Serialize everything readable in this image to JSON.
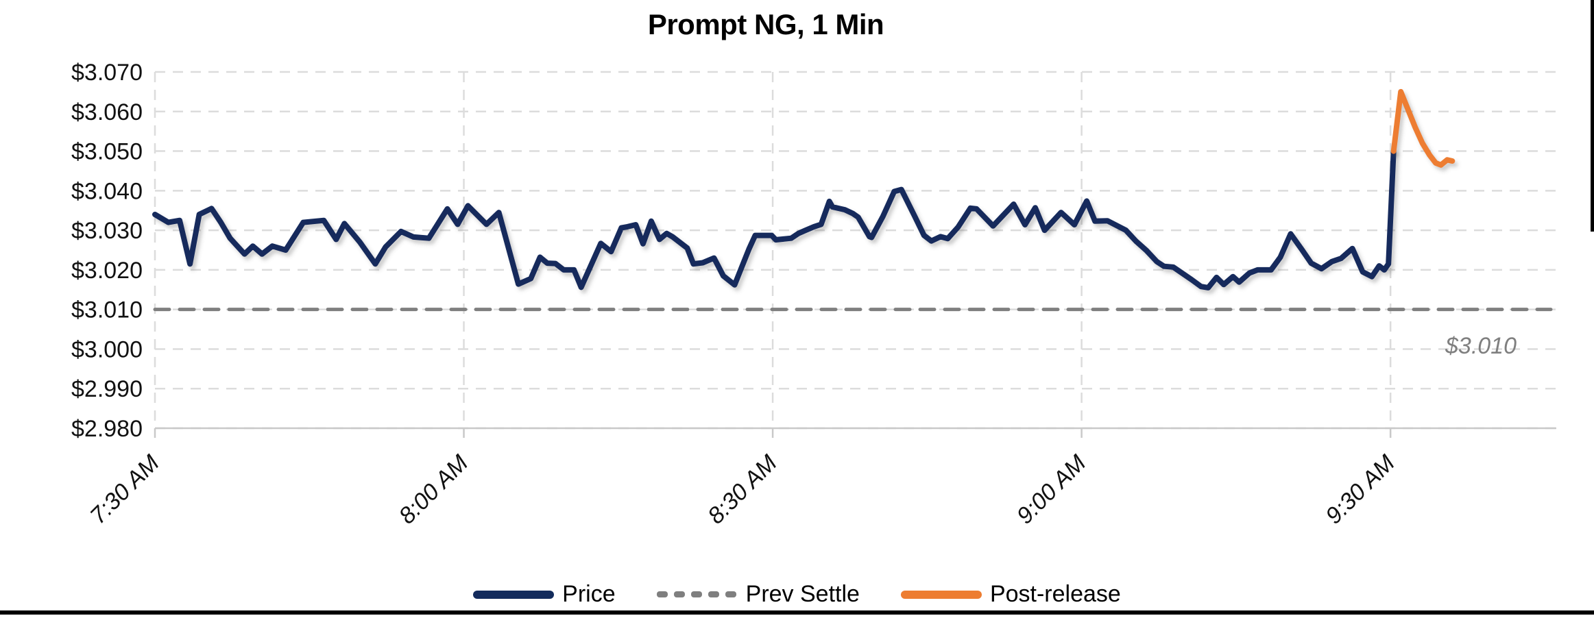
{
  "title": "Prompt NG, 1 Min",
  "annotation": {
    "text": "$3.010",
    "color": "#7f7f7f"
  },
  "legend": [
    {
      "label": "Price",
      "color": "#132B5C",
      "style": "solid"
    },
    {
      "label": "Prev Settle",
      "color": "#7F7F7F",
      "style": "dashed"
    },
    {
      "label": "Post-release",
      "color": "#ED7D31",
      "style": "solid"
    }
  ],
  "chart_data": {
    "type": "line",
    "title": "Prompt NG, 1 Min",
    "xlabel": "",
    "ylabel": "",
    "x_unit": "minutes after 7:30 AM",
    "x_tick_labels": [
      "7:30 AM",
      "8:00 AM",
      "8:30 AM",
      "9:00 AM",
      "9:30 AM"
    ],
    "x_tick_minutes": [
      0,
      30,
      60,
      90,
      120
    ],
    "xlim_minutes": [
      0,
      136
    ],
    "y_tick_labels": [
      "$3.070",
      "$3.060",
      "$3.050",
      "$3.040",
      "$3.030",
      "$3.020",
      "$3.010",
      "$3.000",
      "$2.990",
      "$2.980"
    ],
    "ylim": [
      2.98,
      3.07
    ],
    "grid": "dashed",
    "legend_position": "bottom",
    "prev_settle_value": 3.01,
    "series": [
      {
        "name": "Price",
        "color": "#132B5C",
        "points": [
          [
            0,
            3.034
          ],
          [
            1.3,
            3.032
          ],
          [
            2.4,
            3.0325
          ],
          [
            3.4,
            3.0215
          ],
          [
            4.3,
            3.034
          ],
          [
            5.5,
            3.0355
          ],
          [
            6.4,
            3.032
          ],
          [
            7.3,
            3.028
          ],
          [
            8,
            3.026
          ],
          [
            8.7,
            3.024
          ],
          [
            9.5,
            3.026
          ],
          [
            10.4,
            3.024
          ],
          [
            11.4,
            3.026
          ],
          [
            12.7,
            3.025
          ],
          [
            14.4,
            3.032
          ],
          [
            16.4,
            3.0325
          ],
          [
            17.6,
            3.0277
          ],
          [
            18.4,
            3.0317
          ],
          [
            19.9,
            3.027
          ],
          [
            21.4,
            3.0215
          ],
          [
            22.4,
            3.0258
          ],
          [
            23.9,
            3.0297
          ],
          [
            25.1,
            3.0283
          ],
          [
            26.6,
            3.028
          ],
          [
            28.4,
            3.0354
          ],
          [
            29.4,
            3.0315
          ],
          [
            30.4,
            3.0362
          ],
          [
            32.2,
            3.0315
          ],
          [
            33.4,
            3.0345
          ],
          [
            35.3,
            3.0164
          ],
          [
            36.5,
            3.0178
          ],
          [
            37.4,
            3.0232
          ],
          [
            38.1,
            3.0217
          ],
          [
            38.9,
            3.0216
          ],
          [
            39.7,
            3.02
          ],
          [
            40.7,
            3.02
          ],
          [
            41.4,
            3.0156
          ],
          [
            43.3,
            3.0267
          ],
          [
            44.3,
            3.0246
          ],
          [
            45.3,
            3.0306
          ],
          [
            45.9,
            3.0309
          ],
          [
            46.7,
            3.0314
          ],
          [
            47.4,
            3.0266
          ],
          [
            48.2,
            3.0323
          ],
          [
            49,
            3.0277
          ],
          [
            49.7,
            3.0292
          ],
          [
            50.3,
            3.0283
          ],
          [
            51.7,
            3.0255
          ],
          [
            52.3,
            3.0215
          ],
          [
            53.2,
            3.0218
          ],
          [
            54.3,
            3.023
          ],
          [
            55.2,
            3.0185
          ],
          [
            56.3,
            3.0162
          ],
          [
            57.7,
            3.0253
          ],
          [
            58.3,
            3.0287
          ],
          [
            59.9,
            3.0287
          ],
          [
            60.3,
            3.0276
          ],
          [
            61.8,
            3.028
          ],
          [
            62.5,
            3.0292
          ],
          [
            63.2,
            3.03
          ],
          [
            64,
            3.0309
          ],
          [
            64.7,
            3.0315
          ],
          [
            65.5,
            3.0373
          ],
          [
            65.8,
            3.0359
          ],
          [
            67,
            3.0352
          ],
          [
            67.8,
            3.0342
          ],
          [
            68.3,
            3.0333
          ],
          [
            69.4,
            3.0284
          ],
          [
            69.6,
            3.0282
          ],
          [
            70.7,
            3.0335
          ],
          [
            71.8,
            3.0398
          ],
          [
            72.5,
            3.0403
          ],
          [
            73.8,
            3.0335
          ],
          [
            74.7,
            3.0287
          ],
          [
            75.4,
            3.0273
          ],
          [
            76.3,
            3.0284
          ],
          [
            77,
            3.0279
          ],
          [
            78,
            3.0308
          ],
          [
            79.2,
            3.0356
          ],
          [
            79.8,
            3.0354
          ],
          [
            81.4,
            3.0311
          ],
          [
            83.4,
            3.0366
          ],
          [
            84.5,
            3.0314
          ],
          [
            85.5,
            3.0357
          ],
          [
            86.4,
            3.03
          ],
          [
            88,
            3.0345
          ],
          [
            89.3,
            3.0314
          ],
          [
            90.5,
            3.0374
          ],
          [
            91.3,
            3.0323
          ],
          [
            92.5,
            3.0324
          ],
          [
            94.3,
            3.03
          ],
          [
            95.3,
            3.0272
          ],
          [
            96.3,
            3.0249
          ],
          [
            97.3,
            3.0221
          ],
          [
            98,
            3.0209
          ],
          [
            98.9,
            3.0207
          ],
          [
            100.7,
            3.0175
          ],
          [
            101.6,
            3.0158
          ],
          [
            102.3,
            3.0155
          ],
          [
            103.1,
            3.0181
          ],
          [
            103.8,
            3.0163
          ],
          [
            104.7,
            3.0183
          ],
          [
            105.3,
            3.0169
          ],
          [
            106.3,
            3.0192
          ],
          [
            107.1,
            3.02
          ],
          [
            108.4,
            3.02
          ],
          [
            109.3,
            3.0232
          ],
          [
            110.3,
            3.0291
          ],
          [
            111.4,
            3.0251
          ],
          [
            112.3,
            3.0217
          ],
          [
            113.3,
            3.0203
          ],
          [
            114.3,
            3.0221
          ],
          [
            115.2,
            3.0229
          ],
          [
            116.3,
            3.0254
          ],
          [
            117.3,
            3.0195
          ],
          [
            118.2,
            3.0183
          ],
          [
            118.9,
            3.021
          ],
          [
            119.4,
            3.02
          ],
          [
            119.8,
            3.0215
          ],
          [
            120.3,
            3.05
          ]
        ]
      },
      {
        "name": "Prev Settle",
        "color": "#7F7F7F",
        "dashed": true,
        "constant_value": 3.01
      },
      {
        "name": "Post-release",
        "color": "#ED7D31",
        "points": [
          [
            120.3,
            3.05
          ],
          [
            121,
            3.065
          ],
          [
            121.7,
            3.0605
          ],
          [
            122.4,
            3.056
          ],
          [
            123.1,
            3.052
          ],
          [
            123.8,
            3.049
          ],
          [
            124.4,
            3.047
          ],
          [
            124.9,
            3.0465
          ],
          [
            125.5,
            3.0478
          ],
          [
            126,
            3.0475
          ]
        ]
      }
    ]
  }
}
